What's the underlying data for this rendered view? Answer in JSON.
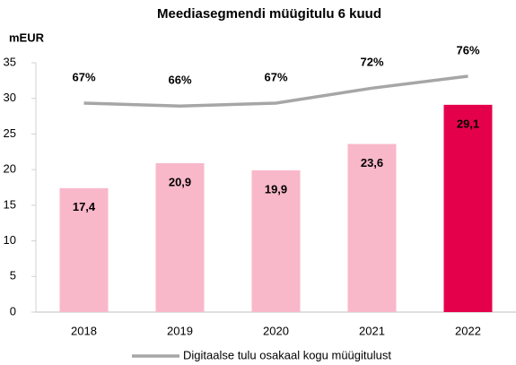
{
  "chart_data": {
    "type": "bar",
    "title": "Meediasegmendi müügitulu 6 kuud",
    "y_label": "mEUR",
    "categories": [
      "2018",
      "2019",
      "2020",
      "2021",
      "2022"
    ],
    "ylim": [
      0,
      35
    ],
    "yticks": [
      0,
      5,
      10,
      15,
      20,
      25,
      30,
      35
    ],
    "y2lim": [
      -3,
      80.5
    ],
    "grid": false,
    "legend": "bottom",
    "series": [
      {
        "type": "bar",
        "colors": [
          "#f8b8ca",
          "#f8b8ca",
          "#f8b8ca",
          "#f8b8ca",
          "#e5004c"
        ],
        "values": [
          17.4,
          20.9,
          19.9,
          23.6,
          29.1
        ],
        "value_labels": [
          "17,4",
          "20,9",
          "19,9",
          "23,6",
          "29,1"
        ]
      },
      {
        "type": "line",
        "axis": "y2",
        "name": "Digitaalse tulu osakaal kogu müügitulust",
        "color": "#a6a6a6",
        "values": [
          67,
          66,
          67,
          72,
          76
        ],
        "value_labels": [
          "67%",
          "66%",
          "67%",
          "72%",
          "76%"
        ]
      }
    ]
  }
}
